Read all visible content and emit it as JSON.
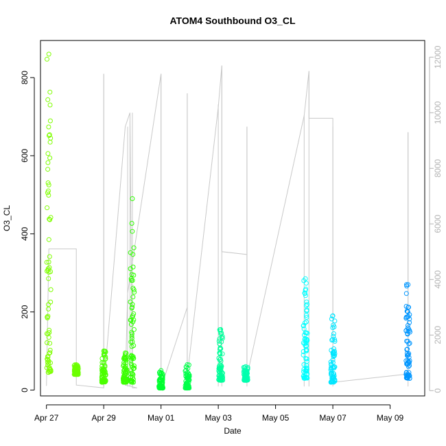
{
  "chart_data": {
    "type": "scatter",
    "title": "ATOM4 Southbound O3_CL",
    "xlabel": "Date",
    "ylabel": "O3_CL",
    "xlim": [
      "2016-04-26T19:00",
      "2016-05-10T05:00"
    ],
    "ylim": [
      -15,
      895
    ],
    "y2lim": [
      -190,
      12600
    ],
    "x_ticks": [
      {
        "label": "Apr 27",
        "date": "2016-04-27T00:00"
      },
      {
        "label": "Apr 29",
        "date": "2016-04-29T00:00"
      },
      {
        "label": "May 01",
        "date": "2016-05-01T00:00"
      },
      {
        "label": "May 03",
        "date": "2016-05-03T00:00"
      },
      {
        "label": "May 05",
        "date": "2016-05-05T00:00"
      },
      {
        "label": "May 07",
        "date": "2016-05-07T00:00"
      },
      {
        "label": "May 09",
        "date": "2016-05-09T00:00"
      }
    ],
    "y_ticks": [
      0,
      200,
      400,
      600,
      800
    ],
    "y2_ticks": [
      0,
      2000,
      4000,
      6000,
      8000,
      10000,
      12000
    ],
    "grid": false,
    "legend": "none",
    "series": [
      {
        "kind": "points",
        "color_scale": "hue by time: green → cyan → blue",
        "clusters": [
          {
            "date": "2016-04-27T02:00",
            "y_min": 45,
            "y_max": 860,
            "color": "#7fff00"
          },
          {
            "date": "2016-04-28T01:00",
            "y_min": 40,
            "y_max": 65,
            "color": "#6cff00"
          },
          {
            "date": "2016-04-29T00:00",
            "y_min": 20,
            "y_max": 100,
            "color": "#4cff00"
          },
          {
            "date": "2016-04-29T18:00",
            "y_min": 20,
            "y_max": 95,
            "color": "#3bff00"
          },
          {
            "date": "2016-04-30T00:00",
            "y_min": 20,
            "y_max": 490,
            "color": "#2fff00"
          },
          {
            "date": "2016-05-01T00:00",
            "y_min": 5,
            "y_max": 50,
            "color": "#00ff30"
          },
          {
            "date": "2016-05-01T22:00",
            "y_min": 5,
            "y_max": 65,
            "color": "#00ff4a"
          },
          {
            "date": "2016-05-03T02:00",
            "y_min": 25,
            "y_max": 155,
            "color": "#00ff9a"
          },
          {
            "date": "2016-05-03T23:00",
            "y_min": 25,
            "y_max": 60,
            "color": "#00ffae"
          },
          {
            "date": "2016-05-06T01:00",
            "y_min": 30,
            "y_max": 285,
            "color": "#00ffff"
          },
          {
            "date": "2016-05-07T00:00",
            "y_min": 20,
            "y_max": 190,
            "color": "#00e6ff"
          },
          {
            "date": "2016-05-09T15:00",
            "y_min": 30,
            "y_max": 270,
            "color": "#0096ff"
          }
        ]
      },
      {
        "kind": "line",
        "color": "#c8c8c8",
        "axis": "right",
        "segments": [
          {
            "x": "2016-04-27T00:00",
            "y": 170
          },
          {
            "x": "2016-04-27T02:00",
            "y": 5100
          },
          {
            "x": "2016-04-28T01:00",
            "y": 5100
          },
          {
            "x": "2016-04-28T01:00",
            "y": 200
          },
          {
            "x": "2016-04-29T00:00",
            "y": 100
          },
          {
            "x": "2016-04-29T00:00",
            "y": 11400
          },
          {
            "x": "2016-04-29T00:00",
            "y": 100
          },
          {
            "x": "2016-04-29T18:00",
            "y": 9500
          },
          {
            "x": "2016-04-29T22:00",
            "y": 10000
          },
          {
            "x": "2016-04-30T00:00",
            "y": 100
          },
          {
            "x": "2016-04-30T02:00",
            "y": 100
          },
          {
            "x": "2016-04-30T04:00",
            "y": 100
          },
          {
            "x": "2016-04-29T18:00",
            "y": 200
          },
          {
            "x": "2016-04-29T20:00",
            "y": 3500
          },
          {
            "x": "2016-05-01T00:00",
            "y": 11400
          },
          {
            "x": "2016-05-01T00:00",
            "y": 100
          },
          {
            "x": "2016-05-01T22:00",
            "y": 3000
          },
          {
            "x": "2016-05-01T22:00",
            "y": 10700
          },
          {
            "x": "2016-05-01T22:00",
            "y": 500
          },
          {
            "x": "2016-05-03T00:00",
            "y": 10200
          },
          {
            "x": "2016-05-03T03:00",
            "y": 11700
          },
          {
            "x": "2016-05-03T03:00",
            "y": 5000
          },
          {
            "x": "2016-05-04T00:00",
            "y": 4900
          },
          {
            "x": "2016-05-04T00:00",
            "y": 9500
          },
          {
            "x": "2016-05-04T00:00",
            "y": 500
          },
          {
            "x": "2016-05-06T00:00",
            "y": 9900
          },
          {
            "x": "2016-05-06T04:00",
            "y": 11500
          },
          {
            "x": "2016-05-06T04:00",
            "y": 9800
          },
          {
            "x": "2016-05-07T00:00",
            "y": 9800
          },
          {
            "x": "2016-05-07T00:00",
            "y": 300
          },
          {
            "x": "2016-05-09T15:00",
            "y": 600
          },
          {
            "x": "2016-05-09T15:00",
            "y": 9300
          }
        ]
      }
    ]
  }
}
